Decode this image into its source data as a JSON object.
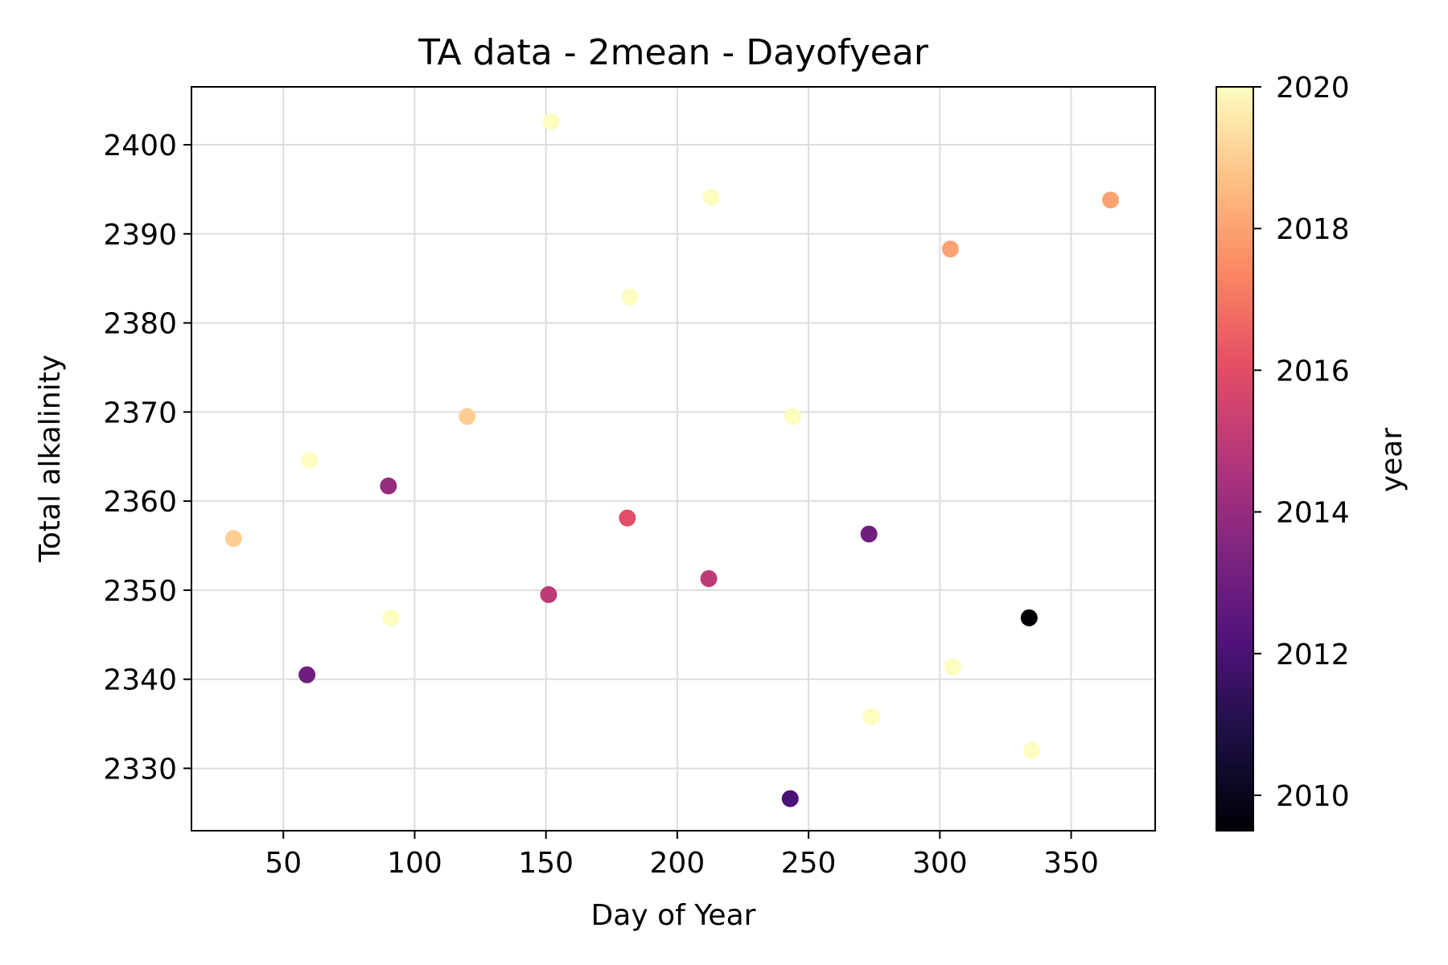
{
  "chart_data": {
    "type": "scatter",
    "title": "TA data - 2mean - Dayofyear",
    "xlabel": "Day of Year",
    "ylabel": "Total alkalinity",
    "xlim": [
      15,
      382
    ],
    "ylim": [
      2323,
      2406.5
    ],
    "xticks": [
      50,
      100,
      150,
      200,
      250,
      300,
      350
    ],
    "yticks": [
      2330,
      2340,
      2350,
      2360,
      2370,
      2380,
      2390,
      2400
    ],
    "grid": true,
    "colorbar": {
      "label": "year",
      "colormap": "magma",
      "range": [
        2009.5,
        2020
      ],
      "ticks": [
        2010,
        2012,
        2014,
        2016,
        2018,
        2020
      ]
    },
    "points": [
      {
        "x": 31,
        "y": 2355.8,
        "year": 2019
      },
      {
        "x": 60,
        "y": 2364.6,
        "year": 2020
      },
      {
        "x": 59,
        "y": 2340.5,
        "year": 2013
      },
      {
        "x": 90,
        "y": 2361.7,
        "year": 2014
      },
      {
        "x": 91,
        "y": 2346.9,
        "year": 2020
      },
      {
        "x": 120,
        "y": 2369.5,
        "year": 2019
      },
      {
        "x": 152,
        "y": 2402.6,
        "year": 2020
      },
      {
        "x": 151,
        "y": 2349.5,
        "year": 2015
      },
      {
        "x": 181,
        "y": 2358.1,
        "year": 2016
      },
      {
        "x": 182,
        "y": 2382.9,
        "year": 2020
      },
      {
        "x": 213,
        "y": 2394.1,
        "year": 2020
      },
      {
        "x": 212,
        "y": 2351.3,
        "year": 2015
      },
      {
        "x": 243,
        "y": 2326.6,
        "year": 2012
      },
      {
        "x": 244,
        "y": 2369.5,
        "year": 2020
      },
      {
        "x": 273,
        "y": 2356.3,
        "year": 2013
      },
      {
        "x": 274,
        "y": 2335.8,
        "year": 2020
      },
      {
        "x": 304,
        "y": 2388.3,
        "year": 2018
      },
      {
        "x": 305,
        "y": 2341.4,
        "year": 2020
      },
      {
        "x": 334,
        "y": 2346.9,
        "year": 2009.5
      },
      {
        "x": 335,
        "y": 2332.0,
        "year": 2020
      },
      {
        "x": 365,
        "y": 2393.8,
        "year": 2018
      }
    ]
  }
}
